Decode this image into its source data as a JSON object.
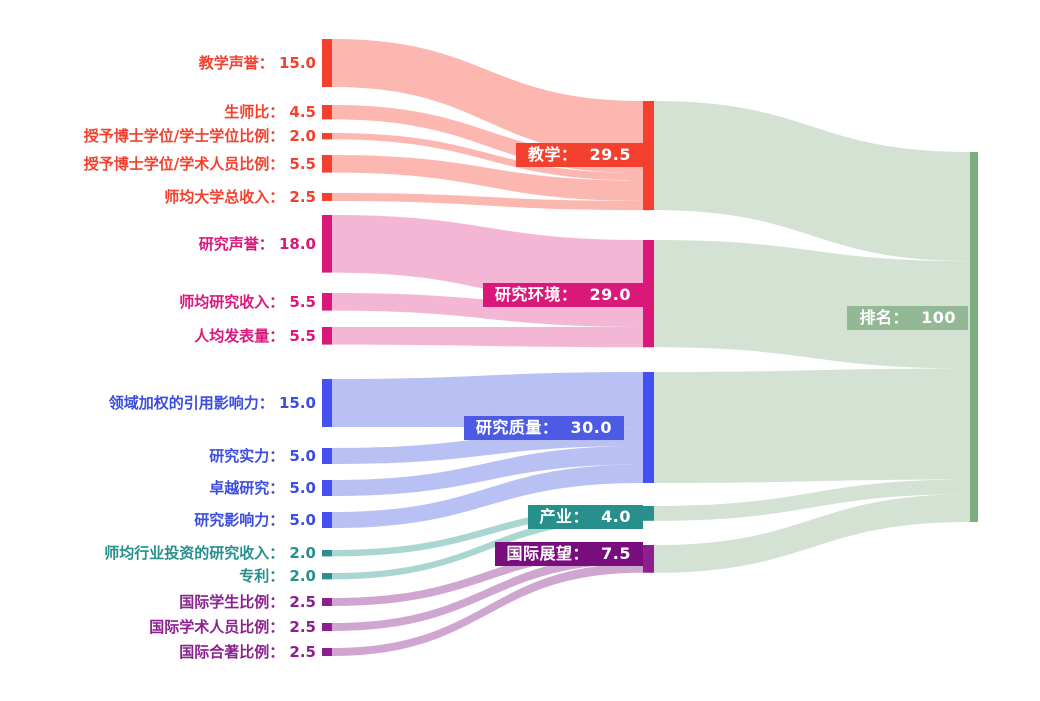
{
  "canvas": {
    "background": "#ffffff"
  },
  "chart_data": {
    "type": "sankey",
    "description": "University ranking methodology weights flowing from 17 indicators into 5 pillars into overall rank of 100",
    "total": 100,
    "groups": {
      "teaching": {
        "node": "#f4402f",
        "link": "#fba89f",
        "box": "#f4402f",
        "text": "#f4402f"
      },
      "research-environment": {
        "node": "#d9187a",
        "link": "#f0a6cb",
        "box": "#d9187a",
        "text": "#d9187a"
      },
      "research-quality": {
        "node": "#4450f0",
        "link": "#aab2f2",
        "box": "#4c5ae6",
        "text": "#3c4ee0"
      },
      "industry": {
        "node": "#2b908d",
        "link": "#96ccc9",
        "box": "#27908d",
        "text": "#27908d"
      },
      "international-outlook": {
        "node": "#8d2090",
        "link": "#c493c6",
        "box": "#7a0d7e",
        "text": "#8d2090"
      },
      "overall": {
        "node": "#7dae80",
        "link": "#cbdccb",
        "box": "#92b894",
        "text": "#92b894"
      }
    },
    "nodes": [
      {
        "id": "teaching-reputation",
        "label": "教学声誉",
        "value": 15.0,
        "display": "教学声誉： 15.0",
        "column": "left",
        "group": "teaching"
      },
      {
        "id": "student-staff-ratio",
        "label": "生师比",
        "value": 4.5,
        "display": "生师比： 4.5",
        "column": "left",
        "group": "teaching"
      },
      {
        "id": "doctorate-bachelor-ratio",
        "label": "授予博士学位/学士学位比例",
        "value": 2.0,
        "display": "授予博士学位/学士学位比例： 2.0",
        "column": "left",
        "group": "teaching"
      },
      {
        "id": "doctorate-staff-ratio",
        "label": "授予博士学位/学术人员比例",
        "value": 5.5,
        "display": "授予博士学位/学术人员比例： 5.5",
        "column": "left",
        "group": "teaching"
      },
      {
        "id": "institutional-income",
        "label": "师均大学总收入",
        "value": 2.5,
        "display": "师均大学总收入： 2.5",
        "column": "left",
        "group": "teaching"
      },
      {
        "id": "research-reputation",
        "label": "研究声誉",
        "value": 18.0,
        "display": "研究声誉： 18.0",
        "column": "left",
        "group": "research-environment"
      },
      {
        "id": "research-income",
        "label": "师均研究收入",
        "value": 5.5,
        "display": "师均研究收入： 5.5",
        "column": "left",
        "group": "research-environment"
      },
      {
        "id": "research-productivity",
        "label": "人均发表量",
        "value": 5.5,
        "display": "人均发表量： 5.5",
        "column": "left",
        "group": "research-environment"
      },
      {
        "id": "citation-impact",
        "label": "领域加权的引用影响力",
        "value": 15.0,
        "display": "领域加权的引用影响力： 15.0",
        "column": "left",
        "group": "research-quality"
      },
      {
        "id": "research-strength",
        "label": "研究实力",
        "value": 5.0,
        "display": "研究实力： 5.0",
        "column": "left",
        "group": "research-quality"
      },
      {
        "id": "research-excellence",
        "label": "卓越研究",
        "value": 5.0,
        "display": "卓越研究： 5.0",
        "column": "left",
        "group": "research-quality"
      },
      {
        "id": "research-influence",
        "label": "研究影响力",
        "value": 5.0,
        "display": "研究影响力： 5.0",
        "column": "left",
        "group": "research-quality"
      },
      {
        "id": "industry-income",
        "label": "师均行业投资的研究收入",
        "value": 2.0,
        "display": "师均行业投资的研究收入： 2.0",
        "column": "left",
        "group": "industry"
      },
      {
        "id": "patents",
        "label": "专利",
        "value": 2.0,
        "display": "专利： 2.0",
        "column": "left",
        "group": "industry"
      },
      {
        "id": "intl-students",
        "label": "国际学生比例",
        "value": 2.5,
        "display": "国际学生比例： 2.5",
        "column": "left",
        "group": "international-outlook"
      },
      {
        "id": "intl-staff",
        "label": "国际学术人员比例",
        "value": 2.5,
        "display": "国际学术人员比例： 2.5",
        "column": "left",
        "group": "international-outlook"
      },
      {
        "id": "intl-coauthorship",
        "label": "国际合著比例",
        "value": 2.5,
        "display": "国际合著比例： 2.5",
        "column": "left",
        "group": "international-outlook"
      },
      {
        "id": "teaching",
        "label": "教学",
        "value": 29.5,
        "display": "教学：  29.5",
        "column": "mid",
        "group": "teaching"
      },
      {
        "id": "research-environment",
        "label": "研究环境",
        "value": 29.0,
        "display": "研究环境：  29.0",
        "column": "mid",
        "group": "research-environment"
      },
      {
        "id": "research-quality",
        "label": "研究质量",
        "value": 30.0,
        "display": "研究质量：  30.0",
        "column": "mid",
        "group": "research-quality"
      },
      {
        "id": "industry",
        "label": "产业",
        "value": 4.0,
        "display": "产业：  4.0",
        "column": "mid",
        "group": "industry"
      },
      {
        "id": "international-outlook",
        "label": "国际展望",
        "value": 7.5,
        "display": "国际展望：  7.5",
        "column": "mid",
        "group": "international-outlook"
      },
      {
        "id": "overall",
        "label": "排名",
        "value": 100,
        "display": "排名：  100",
        "column": "right",
        "group": "overall"
      }
    ],
    "links": [
      {
        "source": "teaching-reputation",
        "target": "teaching",
        "value": 15.0
      },
      {
        "source": "student-staff-ratio",
        "target": "teaching",
        "value": 4.5
      },
      {
        "source": "doctorate-bachelor-ratio",
        "target": "teaching",
        "value": 2.0
      },
      {
        "source": "doctorate-staff-ratio",
        "target": "teaching",
        "value": 5.5
      },
      {
        "source": "institutional-income",
        "target": "teaching",
        "value": 2.5
      },
      {
        "source": "research-reputation",
        "target": "research-environment",
        "value": 18.0
      },
      {
        "source": "research-income",
        "target": "research-environment",
        "value": 5.5
      },
      {
        "source": "research-productivity",
        "target": "research-environment",
        "value": 5.5
      },
      {
        "source": "citation-impact",
        "target": "research-quality",
        "value": 15.0
      },
      {
        "source": "research-strength",
        "target": "research-quality",
        "value": 5.0
      },
      {
        "source": "research-excellence",
        "target": "research-quality",
        "value": 5.0
      },
      {
        "source": "research-influence",
        "target": "research-quality",
        "value": 5.0
      },
      {
        "source": "industry-income",
        "target": "industry",
        "value": 2.0
      },
      {
        "source": "patents",
        "target": "industry",
        "value": 2.0
      },
      {
        "source": "intl-students",
        "target": "international-outlook",
        "value": 2.5
      },
      {
        "source": "intl-staff",
        "target": "international-outlook",
        "value": 2.5
      },
      {
        "source": "intl-coauthorship",
        "target": "international-outlook",
        "value": 2.5
      },
      {
        "source": "teaching",
        "target": "overall",
        "value": 29.5
      },
      {
        "source": "research-environment",
        "target": "overall",
        "value": 29.0
      },
      {
        "source": "research-quality",
        "target": "overall",
        "value": 30.0
      },
      {
        "source": "industry",
        "target": "overall",
        "value": 4.0
      },
      {
        "source": "international-outlook",
        "target": "overall",
        "value": 7.5
      }
    ]
  }
}
